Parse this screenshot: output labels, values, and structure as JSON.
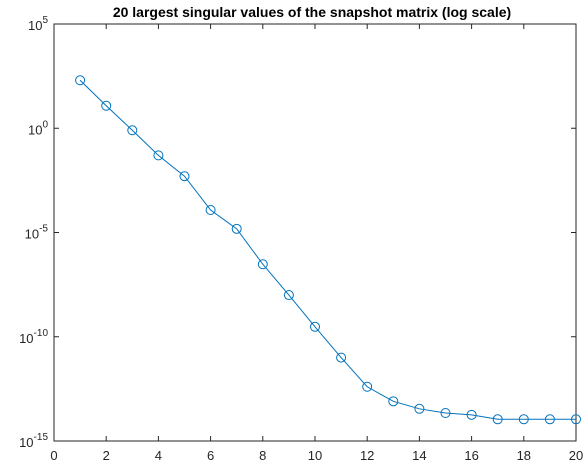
{
  "chart_data": {
    "type": "line",
    "title": "20 largest singular values of the snapshot matrix (log scale)",
    "xlabel": "",
    "ylabel": "",
    "xlim": [
      0,
      20
    ],
    "ylim": [
      1e-15,
      100000
    ],
    "yscale": "log",
    "grid": false,
    "x_ticks": [
      "0",
      "2",
      "4",
      "6",
      "8",
      "10",
      "12",
      "14",
      "16",
      "18",
      "20"
    ],
    "y_ticks": [
      {
        "base": "10",
        "exp": "5"
      },
      {
        "base": "10",
        "exp": "0"
      },
      {
        "base": "10",
        "exp": "-5"
      },
      {
        "base": "10",
        "exp": "-10"
      },
      {
        "base": "10",
        "exp": "-15"
      }
    ],
    "series": [
      {
        "color": "#0072BD",
        "marker": "circle",
        "x": [
          1,
          2,
          3,
          4,
          5,
          6,
          7,
          8,
          9,
          10,
          11,
          12,
          13,
          14,
          15,
          16,
          17,
          18,
          19,
          20
        ],
        "y": [
          200,
          12,
          0.8,
          0.05,
          0.005,
          0.00012,
          1.5e-05,
          3e-07,
          1e-08,
          3e-10,
          1e-11,
          4e-13,
          8e-14,
          3.5e-14,
          2.2e-14,
          1.8e-14,
          1.1e-14,
          1.1e-14,
          1.1e-14,
          1.1e-14
        ]
      }
    ]
  }
}
